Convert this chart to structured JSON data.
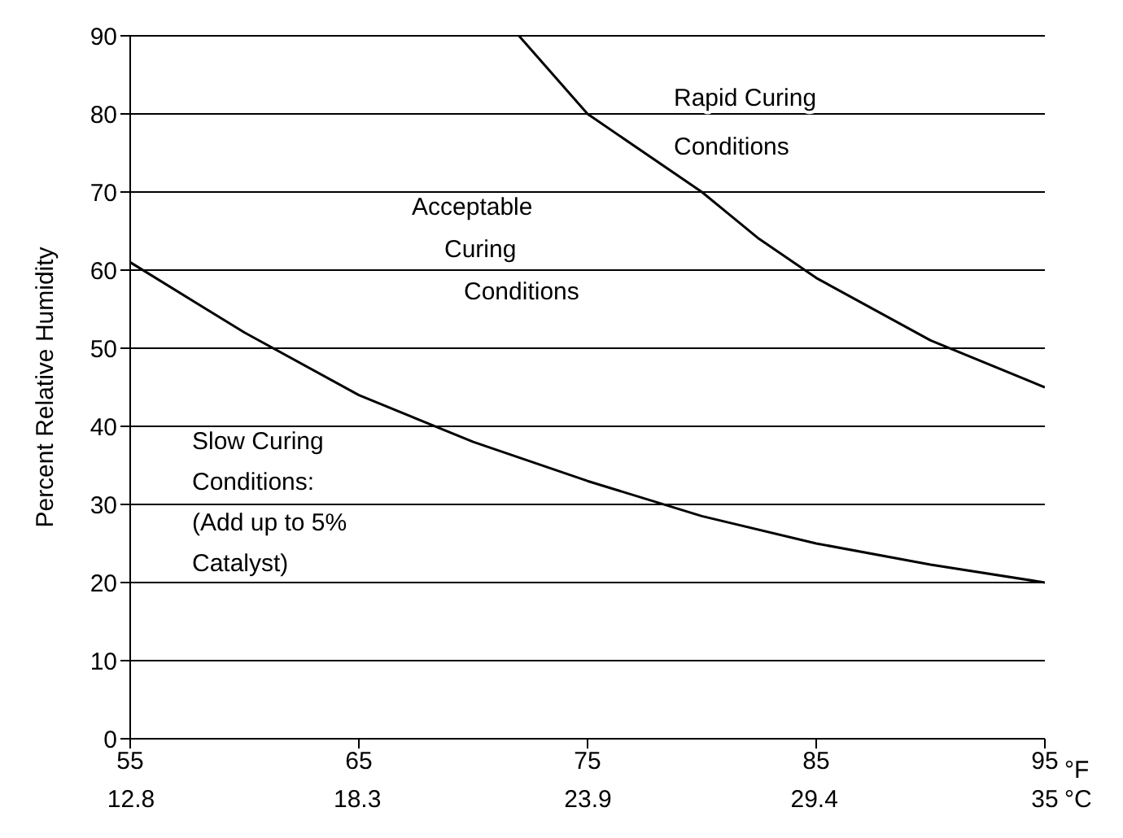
{
  "chart_data": {
    "type": "line",
    "ylabel": "Percent Relative Humidity",
    "xlabel": "°F",
    "x2label": "°C",
    "xlim": [
      55,
      95
    ],
    "xticks": [
      55,
      65,
      75,
      85,
      95
    ],
    "x2lim": [
      12.78,
      35
    ],
    "x2ticks": [
      12.8,
      18.3,
      23.9,
      29.4,
      35
    ],
    "ylim": [
      0,
      90
    ],
    "yticks": [
      0,
      10,
      20,
      30,
      40,
      50,
      60,
      70,
      80,
      90
    ],
    "grid": "y",
    "marker": "none",
    "line_style": "solid",
    "series": [
      {
        "color": "#000000",
        "x": [
          55,
          60,
          65,
          70,
          75,
          80,
          85,
          90,
          95
        ],
        "values": [
          61,
          52,
          44,
          38,
          33,
          28.5,
          25,
          22.3,
          20
        ]
      },
      {
        "color": "#000000",
        "x": [
          72,
          75,
          80,
          82.5,
          85,
          90,
          95
        ],
        "values": [
          90,
          80,
          70,
          64,
          59,
          51,
          45
        ]
      }
    ],
    "annotations": [
      "Rapid Curing\nConditions",
      "Acceptable\nCuring\nConditions",
      "Slow Curing\nConditions:\n(Add up to 5%\nCatalyst)"
    ]
  }
}
